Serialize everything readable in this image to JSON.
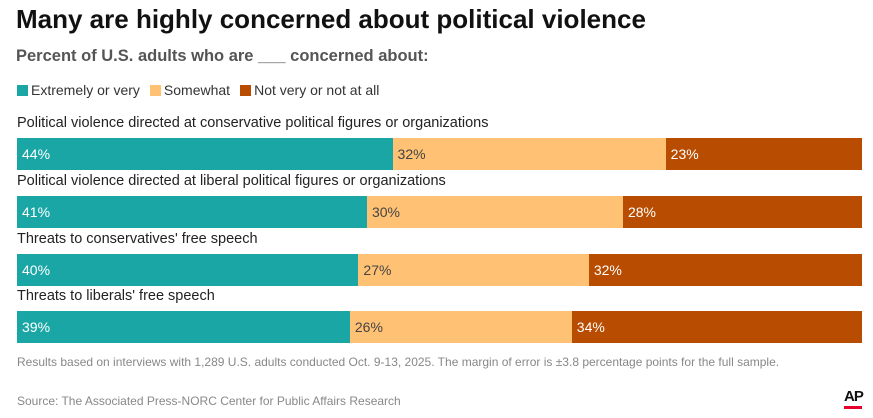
{
  "chart_data": {
    "type": "bar",
    "orientation": "horizontal-stacked",
    "title": "Many are highly concerned about political violence",
    "subtitle": "Percent of U.S. adults who are ___ concerned about:",
    "legend": [
      "Extremely or very",
      "Somewhat",
      "Not very or not at all"
    ],
    "legend_position": "top-left",
    "colors": [
      "#1ba6a6",
      "#ffc174",
      "#b84c00"
    ],
    "label_colors": [
      "#ffffff",
      "#444444",
      "#ffffff"
    ],
    "categories": [
      "Political violence directed at conservative political figures or organizations",
      "Political violence directed at liberal political figures or organizations",
      "Threats to conservatives' free speech",
      "Threats to liberals' free speech"
    ],
    "series": [
      {
        "name": "Extremely or very",
        "values": [
          44,
          41,
          40,
          39
        ]
      },
      {
        "name": "Somewhat",
        "values": [
          32,
          30,
          27,
          26
        ]
      },
      {
        "name": "Not very or not at all",
        "values": [
          23,
          28,
          32,
          34
        ]
      }
    ]
  },
  "footer": {
    "note": "Results based on interviews with 1,289 U.S. adults conducted Oct. 9-13, 2025. The margin of error is ±3.8 percentage points for the full sample.",
    "source": "Source: The Associated Press-NORC Center for Public Affairs Research",
    "logo": "AP"
  }
}
